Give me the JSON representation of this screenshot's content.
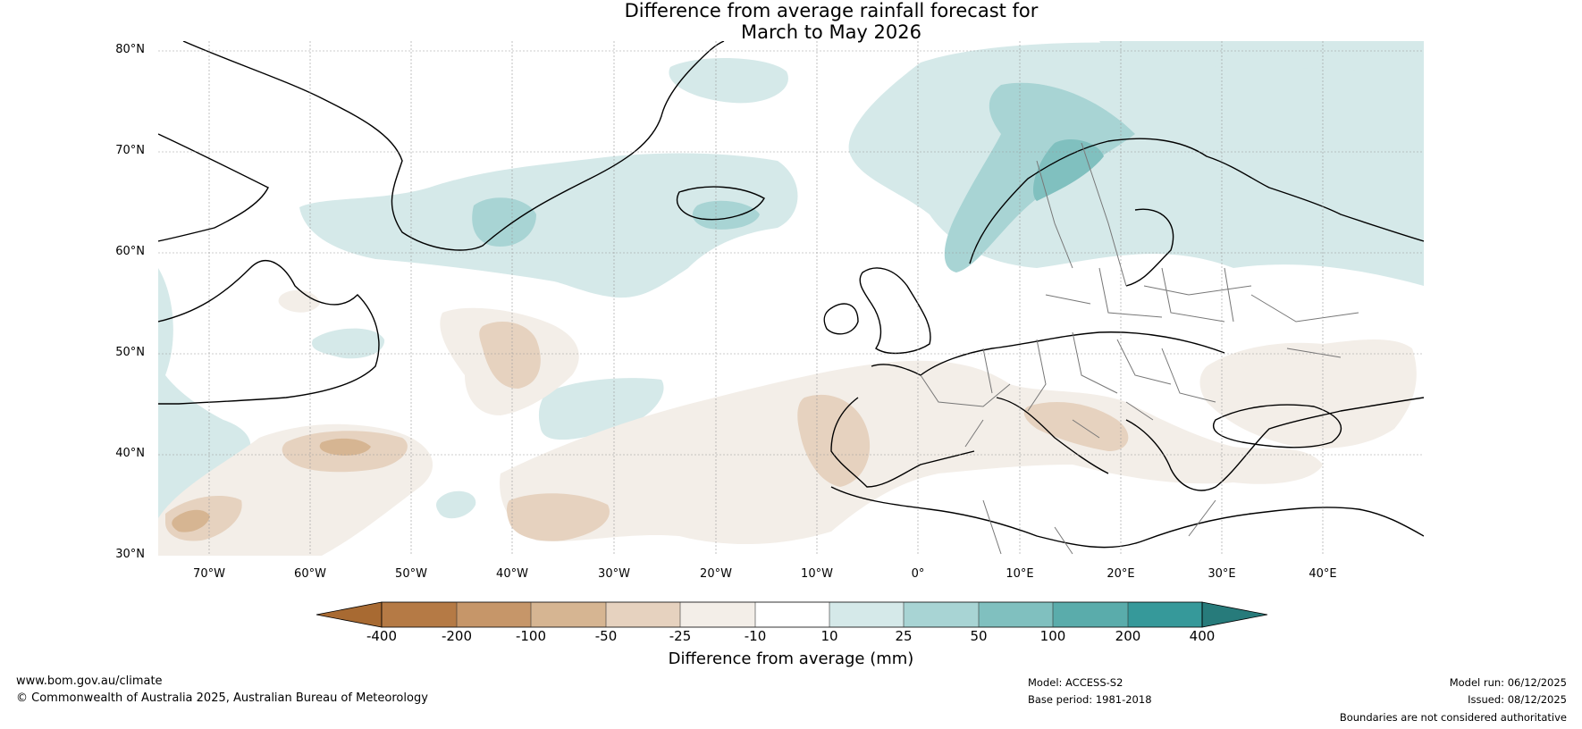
{
  "title": {
    "line1": "Difference from average rainfall forecast for",
    "line2": "March to May 2026"
  },
  "map": {
    "region": "North Atlantic and Europe",
    "lat_ticks": [
      "80°N",
      "70°N",
      "60°N",
      "50°N",
      "40°N",
      "30°N"
    ],
    "lon_ticks": [
      "70°W",
      "60°W",
      "50°W",
      "40°W",
      "30°W",
      "20°W",
      "10°W",
      "0°",
      "10°E",
      "20°E",
      "30°E",
      "40°E"
    ],
    "lat_range": [
      30,
      81
    ],
    "lon_range": [
      -75,
      50
    ]
  },
  "colorbar": {
    "title": "Difference from average (mm)",
    "tick_labels": [
      "-400",
      "-200",
      "-100",
      "-50",
      "-25",
      "-10",
      "10",
      "25",
      "50",
      "100",
      "200",
      "400"
    ],
    "colors": [
      "#a86a32",
      "#b57a45",
      "#c69669",
      "#d6b592",
      "#e6d2bf",
      "#f3eee8",
      "#ffffff",
      "#d5e9e9",
      "#a8d4d4",
      "#80c0bf",
      "#5aacab",
      "#36999a",
      "#277b7b"
    ]
  },
  "footer": {
    "website": "www.bom.gov.au/climate",
    "copyright": "© Commonwealth of Australia 2025, Australian Bureau of Meteorology",
    "model": "Model: ACCESS-S2",
    "base_period": "Base period: 1981-2018",
    "model_run": "Model run: 06/12/2025",
    "issued": "Issued: 08/12/2025",
    "disclaimer": "Boundaries are not considered authoritative"
  }
}
